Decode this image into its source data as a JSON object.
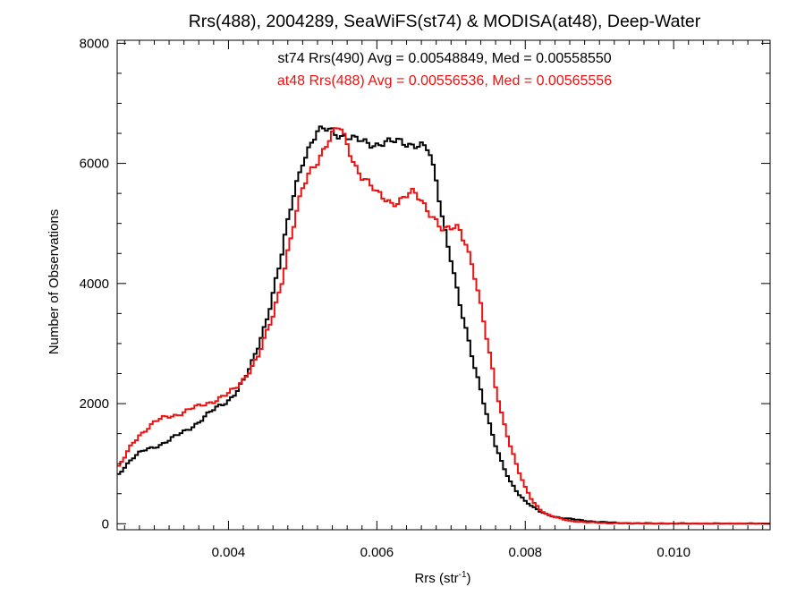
{
  "chart_data": {
    "type": "line",
    "title": "Rrs(488), 2004289, SeaWiFS(st74) & MODISA(at48), Deep-Water",
    "xlabel": "Rrs (str",
    "xlabel_sup": "-1",
    "xlabel_close": ")",
    "ylabel": "Number of Observations",
    "xlim": [
      0.0025,
      0.0113
    ],
    "ylim": [
      -100,
      8050
    ],
    "xticks": [
      0.004,
      0.006,
      0.008,
      0.01
    ],
    "xtick_labels": [
      "0.004",
      "0.006",
      "0.008",
      "0.010"
    ],
    "yticks": [
      0,
      2000,
      4000,
      6000,
      8000
    ],
    "ytick_labels": [
      "0",
      "2000",
      "4000",
      "6000",
      "8000"
    ],
    "grid": false,
    "annotations": [
      {
        "text": "st74 Rrs(490) Avg = 0.00548849, Med = 0.00558550",
        "color": "#000000"
      },
      {
        "text": "at48 Rrs(488) Avg = 0.00556536, Med = 0.00565556",
        "color": "#ee1111"
      }
    ],
    "series": [
      {
        "color": "#000000",
        "points": [
          [
            0.0025,
            800
          ],
          [
            0.0026,
            950
          ],
          [
            0.0027,
            1080
          ],
          [
            0.0028,
            1170
          ],
          [
            0.0029,
            1240
          ],
          [
            0.003,
            1280
          ],
          [
            0.0031,
            1330
          ],
          [
            0.0032,
            1390
          ],
          [
            0.0033,
            1460
          ],
          [
            0.0034,
            1530
          ],
          [
            0.0035,
            1610
          ],
          [
            0.0036,
            1700
          ],
          [
            0.0037,
            1800
          ],
          [
            0.0038,
            1890
          ],
          [
            0.0039,
            1970
          ],
          [
            0.004,
            2060
          ],
          [
            0.0041,
            2200
          ],
          [
            0.0042,
            2370
          ],
          [
            0.0043,
            2600
          ],
          [
            0.0044,
            2950
          ],
          [
            0.0045,
            3350
          ],
          [
            0.0046,
            3850
          ],
          [
            0.0047,
            4350
          ],
          [
            0.0048,
            5000
          ],
          [
            0.0049,
            5600
          ],
          [
            0.005,
            6050
          ],
          [
            0.0051,
            6300
          ],
          [
            0.0052,
            6500
          ],
          [
            0.0053,
            6560
          ],
          [
            0.0054,
            6560
          ],
          [
            0.0055,
            6480
          ],
          [
            0.0056,
            6440
          ],
          [
            0.0057,
            6380
          ],
          [
            0.0058,
            6360
          ],
          [
            0.0059,
            6340
          ],
          [
            0.006,
            6330
          ],
          [
            0.0061,
            6350
          ],
          [
            0.0062,
            6340
          ],
          [
            0.0063,
            6360
          ],
          [
            0.0064,
            6340
          ],
          [
            0.0065,
            6330
          ],
          [
            0.0066,
            6300
          ],
          [
            0.0067,
            6200
          ],
          [
            0.0068,
            5700
          ],
          [
            0.0069,
            5000
          ],
          [
            0.007,
            4450
          ],
          [
            0.0071,
            3750
          ],
          [
            0.0072,
            3200
          ],
          [
            0.0073,
            2700
          ],
          [
            0.0074,
            2250
          ],
          [
            0.0075,
            1750
          ],
          [
            0.0076,
            1300
          ],
          [
            0.0077,
            950
          ],
          [
            0.0078,
            700
          ],
          [
            0.0079,
            520
          ],
          [
            0.008,
            380
          ],
          [
            0.0081,
            280
          ],
          [
            0.0082,
            200
          ],
          [
            0.0083,
            150
          ],
          [
            0.0084,
            120
          ],
          [
            0.0085,
            95
          ],
          [
            0.0086,
            80
          ],
          [
            0.0087,
            65
          ],
          [
            0.0088,
            50
          ],
          [
            0.009,
            30
          ],
          [
            0.0092,
            15
          ],
          [
            0.0095,
            6
          ],
          [
            0.01,
            2
          ],
          [
            0.0113,
            0
          ]
        ]
      },
      {
        "color": "#ee1111",
        "points": [
          [
            0.0025,
            900
          ],
          [
            0.0026,
            1100
          ],
          [
            0.0027,
            1330
          ],
          [
            0.0028,
            1480
          ],
          [
            0.0029,
            1580
          ],
          [
            0.003,
            1680
          ],
          [
            0.0031,
            1750
          ],
          [
            0.0032,
            1790
          ],
          [
            0.0033,
            1820
          ],
          [
            0.0034,
            1860
          ],
          [
            0.0035,
            1910
          ],
          [
            0.0036,
            1950
          ],
          [
            0.0037,
            2000
          ],
          [
            0.0038,
            2050
          ],
          [
            0.0039,
            2110
          ],
          [
            0.004,
            2160
          ],
          [
            0.0041,
            2250
          ],
          [
            0.0042,
            2400
          ],
          [
            0.0043,
            2600
          ],
          [
            0.0044,
            2800
          ],
          [
            0.0045,
            3100
          ],
          [
            0.0046,
            3450
          ],
          [
            0.0047,
            3950
          ],
          [
            0.0048,
            4550
          ],
          [
            0.0049,
            5100
          ],
          [
            0.005,
            5550
          ],
          [
            0.0051,
            5850
          ],
          [
            0.0052,
            6050
          ],
          [
            0.0053,
            6300
          ],
          [
            0.0054,
            6480
          ],
          [
            0.0055,
            6600
          ],
          [
            0.0056,
            6300
          ],
          [
            0.0057,
            6000
          ],
          [
            0.0058,
            5800
          ],
          [
            0.0059,
            5650
          ],
          [
            0.006,
            5480
          ],
          [
            0.0061,
            5420
          ],
          [
            0.0062,
            5360
          ],
          [
            0.0063,
            5380
          ],
          [
            0.0064,
            5450
          ],
          [
            0.0065,
            5500
          ],
          [
            0.0066,
            5380
          ],
          [
            0.0067,
            5230
          ],
          [
            0.0068,
            5050
          ],
          [
            0.0069,
            4850
          ],
          [
            0.007,
            4900
          ],
          [
            0.0071,
            4950
          ],
          [
            0.0072,
            4700
          ],
          [
            0.0073,
            4250
          ],
          [
            0.0074,
            3600
          ],
          [
            0.0075,
            2950
          ],
          [
            0.0076,
            2300
          ],
          [
            0.0077,
            1750
          ],
          [
            0.0078,
            1300
          ],
          [
            0.0079,
            900
          ],
          [
            0.008,
            600
          ],
          [
            0.0081,
            380
          ],
          [
            0.0082,
            240
          ],
          [
            0.0083,
            150
          ],
          [
            0.0084,
            110
          ],
          [
            0.0085,
            75
          ],
          [
            0.0086,
            50
          ],
          [
            0.0087,
            38
          ],
          [
            0.0088,
            25
          ],
          [
            0.009,
            15
          ],
          [
            0.0092,
            8
          ],
          [
            0.0095,
            4
          ],
          [
            0.01,
            1
          ],
          [
            0.0113,
            0
          ]
        ]
      }
    ]
  }
}
